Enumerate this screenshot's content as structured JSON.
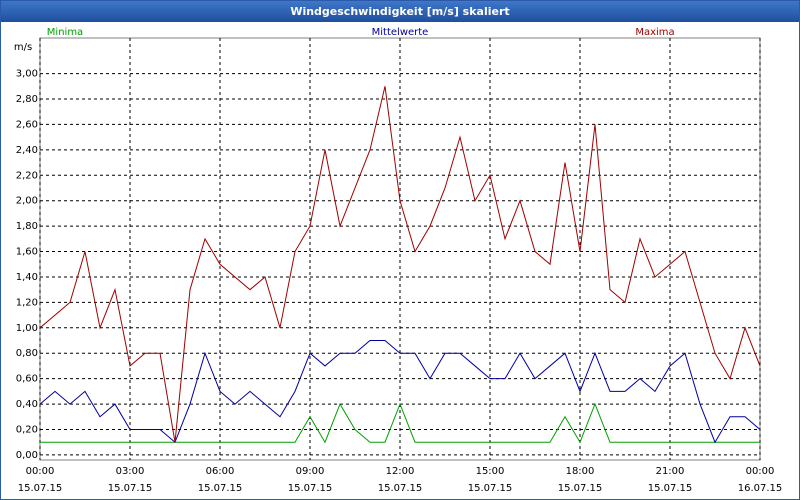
{
  "chart_data": {
    "type": "line",
    "title": "Windgeschwindigkeit [m/s] skaliert",
    "y_label": "m/s",
    "x": [
      0,
      0.5,
      1,
      1.5,
      2,
      2.5,
      3,
      3.5,
      4,
      4.5,
      5,
      5.5,
      6,
      6.5,
      7,
      7.5,
      8,
      8.5,
      9,
      9.5,
      10,
      10.5,
      11,
      11.5,
      12,
      12.5,
      13,
      13.5,
      14,
      14.5,
      15,
      15.5,
      16,
      16.5,
      17,
      17.5,
      18,
      18.5,
      19,
      19.5,
      20,
      20.5,
      21,
      21.5,
      22,
      22.5,
      23,
      23.5,
      24
    ],
    "series": [
      {
        "name": "Minima",
        "color": "#00a000",
        "values": [
          0.1,
          0.1,
          0.1,
          0.1,
          0.1,
          0.1,
          0.1,
          0.1,
          0.1,
          0.1,
          0.1,
          0.1,
          0.1,
          0.1,
          0.1,
          0.1,
          0.1,
          0.1,
          0.3,
          0.1,
          0.4,
          0.2,
          0.1,
          0.1,
          0.4,
          0.1,
          0.1,
          0.1,
          0.1,
          0.1,
          0.1,
          0.1,
          0.1,
          0.1,
          0.1,
          0.3,
          0.1,
          0.4,
          0.1,
          0.1,
          0.1,
          0.1,
          0.1,
          0.1,
          0.1,
          0.1,
          0.1,
          0.1,
          0.1
        ]
      },
      {
        "name": "Mittelwerte",
        "color": "#0000a0",
        "values": [
          0.4,
          0.5,
          0.4,
          0.5,
          0.3,
          0.4,
          0.2,
          0.2,
          0.2,
          0.1,
          0.4,
          0.8,
          0.5,
          0.4,
          0.5,
          0.4,
          0.3,
          0.5,
          0.8,
          0.7,
          0.8,
          0.8,
          0.9,
          0.9,
          0.8,
          0.8,
          0.6,
          0.8,
          0.8,
          0.7,
          0.6,
          0.6,
          0.8,
          0.6,
          0.7,
          0.8,
          0.5,
          0.8,
          0.5,
          0.5,
          0.6,
          0.5,
          0.7,
          0.8,
          0.4,
          0.1,
          0.3,
          0.3,
          0.2
        ]
      },
      {
        "name": "Maxima",
        "color": "#a00000",
        "values": [
          1.0,
          1.1,
          1.2,
          1.6,
          1.0,
          1.3,
          0.7,
          0.8,
          0.8,
          0.1,
          1.3,
          1.7,
          1.5,
          1.4,
          1.3,
          1.4,
          1.0,
          1.6,
          1.8,
          2.4,
          1.8,
          2.1,
          2.4,
          2.9,
          2.0,
          1.6,
          1.8,
          2.1,
          2.5,
          2.0,
          2.2,
          1.7,
          2.0,
          1.6,
          1.5,
          2.3,
          1.6,
          2.6,
          1.3,
          1.2,
          1.7,
          1.4,
          1.5,
          1.6,
          1.2,
          0.8,
          0.6,
          1.0,
          0.7
        ]
      }
    ],
    "xlim": [
      0,
      24
    ],
    "xticks": [
      {
        "value": 0,
        "label": "00:00\n15.07.15"
      },
      {
        "value": 3,
        "label": "03:00\n15.07.15"
      },
      {
        "value": 6,
        "label": "06:00\n15.07.15"
      },
      {
        "value": 9,
        "label": "09:00\n15.07.15"
      },
      {
        "value": 12,
        "label": "12:00\n15.07.15"
      },
      {
        "value": 15,
        "label": "15:00\n15.07.15"
      },
      {
        "value": 18,
        "label": "18:00\n15.07.15"
      },
      {
        "value": 21,
        "label": "21:00\n15.07.15"
      },
      {
        "value": 24,
        "label": "00:00\n16.07.15"
      }
    ],
    "ylim": [
      -0.04,
      3.28
    ],
    "yticks": [
      {
        "value": 0,
        "label": "0,00"
      },
      {
        "value": 0.2,
        "label": "0,20"
      },
      {
        "value": 0.4,
        "label": "0,40"
      },
      {
        "value": 0.6,
        "label": "0,60"
      },
      {
        "value": 0.8,
        "label": "0,80"
      },
      {
        "value": 1,
        "label": "1,00"
      },
      {
        "value": 1.2,
        "label": "1,20"
      },
      {
        "value": 1.4,
        "label": "1,40"
      },
      {
        "value": 1.6,
        "label": "1,60"
      },
      {
        "value": 1.8,
        "label": "1,80"
      },
      {
        "value": 2,
        "label": "2,00"
      },
      {
        "value": 2.2,
        "label": "2,20"
      },
      {
        "value": 2.4,
        "label": "2,40"
      },
      {
        "value": 2.6,
        "label": "2,60"
      },
      {
        "value": 2.8,
        "label": "2,80"
      },
      {
        "value": 3,
        "label": "3,00"
      }
    ],
    "grid": true
  }
}
